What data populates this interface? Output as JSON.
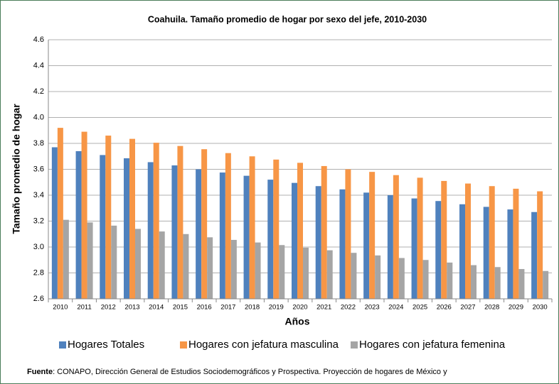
{
  "chart_data": {
    "type": "bar",
    "title": "Coahuila. Tamaño promedio de hogar por sexo del jefe, 2010-2030",
    "x_label": "Años",
    "y_label": "Tamaño promedio de hogar",
    "categories": [
      "2010",
      "2011",
      "2012",
      "2013",
      "2014",
      "2015",
      "2016",
      "2017",
      "2018",
      "2019",
      "2020",
      "2021",
      "2022",
      "2023",
      "2024",
      "2025",
      "2026",
      "2027",
      "2028",
      "2029",
      "2030"
    ],
    "series": [
      {
        "name": "Hogares Totales",
        "color": "#4f81bd",
        "values": [
          3.77,
          3.74,
          3.71,
          3.685,
          3.655,
          3.63,
          3.6,
          3.575,
          3.55,
          3.52,
          3.495,
          3.47,
          3.445,
          3.42,
          3.4,
          3.375,
          3.355,
          3.33,
          3.31,
          3.29,
          3.27
        ]
      },
      {
        "name": "Hogares con jefatura masculina",
        "color": "#f79646",
        "values": [
          3.92,
          3.89,
          3.86,
          3.835,
          3.805,
          3.78,
          3.755,
          3.725,
          3.7,
          3.675,
          3.65,
          3.625,
          3.6,
          3.58,
          3.555,
          3.535,
          3.51,
          3.49,
          3.47,
          3.45,
          3.43
        ]
      },
      {
        "name": "Hogares con jefatura femenina",
        "color": "#a5a5a5",
        "values": [
          3.21,
          3.19,
          3.165,
          3.14,
          3.12,
          3.1,
          3.075,
          3.055,
          3.035,
          3.015,
          2.995,
          2.975,
          2.955,
          2.935,
          2.915,
          2.9,
          2.88,
          2.86,
          2.845,
          2.83,
          2.815
        ]
      }
    ],
    "ylim": [
      2.6,
      4.6
    ],
    "yticks": [
      2.6,
      2.8,
      {
        "value": 3,
        "label": "3.0"
      },
      3.2,
      3.4,
      3.6,
      3.8,
      {
        "value": 4,
        "label": "4.0"
      },
      4.2,
      4.4,
      4.6
    ],
    "grid": true,
    "legend": "bottom",
    "source_label": "Fuente",
    "source": ": CONAPO, Dirección General de Estudios Sociodemográficos y Prospectiva. Proyección de hogares de México y"
  }
}
